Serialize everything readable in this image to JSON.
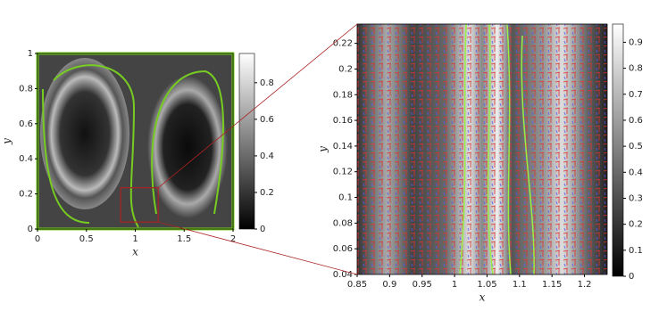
{
  "chart_data": [
    {
      "type": "heatmap",
      "xlabel": "x",
      "ylabel": "y",
      "xlim": [
        0,
        2
      ],
      "ylim": [
        0,
        1
      ],
      "xticks": [
        0,
        0.5,
        1,
        1.5,
        2
      ],
      "yticks": [
        0,
        0.2,
        0.4,
        0.6,
        0.8,
        1
      ],
      "colorbar": {
        "lim": [
          0,
          0.96
        ],
        "ticks": [
          0,
          0.2,
          0.4,
          0.6,
          0.8
        ]
      }
    },
    {
      "type": "heatmap",
      "xlabel": "x",
      "ylabel": "y",
      "xlim": [
        0.85,
        1.235
      ],
      "ylim": [
        0.04,
        0.235
      ],
      "xticks": [
        0.85,
        0.9,
        0.95,
        1,
        1.05,
        1.1,
        1.15,
        1.2
      ],
      "yticks": [
        0.04,
        0.06,
        0.08,
        0.1,
        0.12,
        0.14,
        0.16,
        0.18,
        0.2,
        0.22
      ],
      "colorbar": {
        "lim": [
          0,
          0.97
        ],
        "ticks": [
          0,
          0.1,
          0.2,
          0.3,
          0.4,
          0.5,
          0.6,
          0.7,
          0.8,
          0.9
        ]
      }
    }
  ]
}
